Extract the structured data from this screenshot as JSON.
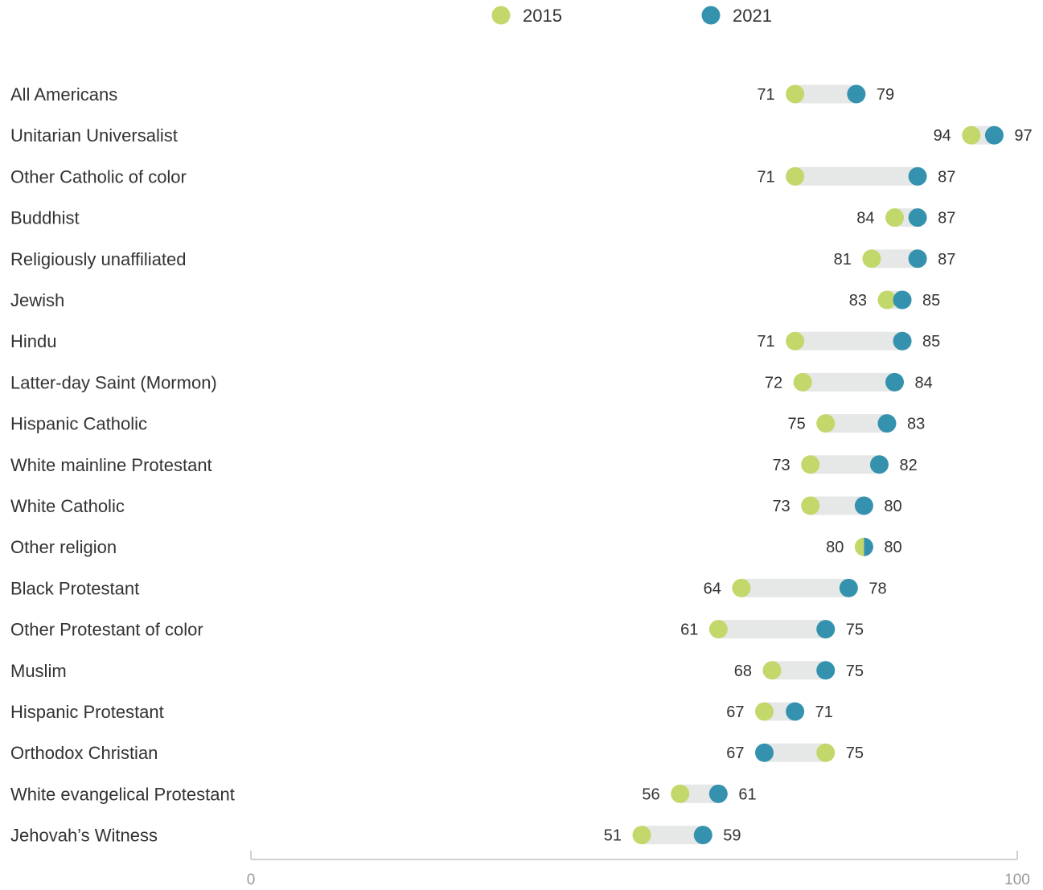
{
  "chart_data": {
    "type": "dumbbell",
    "legend": {
      "placement": "top-center",
      "items": [
        {
          "label": "2015",
          "color": "#c2d86a"
        },
        {
          "label": "2021",
          "color": "#3592ae"
        }
      ]
    },
    "series": [
      {
        "name": "2015",
        "color": "#c2d86a"
      },
      {
        "name": "2021",
        "color": "#3592ae"
      }
    ],
    "categories": [
      "All Americans",
      "Unitarian Universalist",
      "Other Catholic of color",
      "Buddhist",
      "Religiously unaffiliated",
      "Jewish",
      "Hindu",
      "Latter-day Saint (Mormon)",
      "Hispanic Catholic",
      "White mainline Protestant",
      "White Catholic",
      "Other religion",
      "Black Protestant",
      "Other Protestant of color",
      "Muslim",
      "Hispanic Protestant",
      "Orthodox Christian",
      "White evangelical Protestant",
      "Jehovah’s Witness"
    ],
    "rows": [
      {
        "label": "All Americans",
        "v2015": 71,
        "v2021": 79
      },
      {
        "label": "Unitarian Universalist",
        "v2015": 94,
        "v2021": 97
      },
      {
        "label": "Other Catholic of color",
        "v2015": 71,
        "v2021": 87
      },
      {
        "label": "Buddhist",
        "v2015": 84,
        "v2021": 87
      },
      {
        "label": "Religiously unaffiliated",
        "v2015": 81,
        "v2021": 87
      },
      {
        "label": "Jewish",
        "v2015": 83,
        "v2021": 85
      },
      {
        "label": "Hindu",
        "v2015": 71,
        "v2021": 85
      },
      {
        "label": "Latter-day Saint (Mormon)",
        "v2015": 72,
        "v2021": 84
      },
      {
        "label": "Hispanic Catholic",
        "v2015": 75,
        "v2021": 83
      },
      {
        "label": "White mainline Protestant",
        "v2015": 73,
        "v2021": 82
      },
      {
        "label": "White Catholic",
        "v2015": 73,
        "v2021": 80
      },
      {
        "label": "Other religion",
        "v2015": 80,
        "v2021": 80
      },
      {
        "label": "Black Protestant",
        "v2015": 64,
        "v2021": 78
      },
      {
        "label": "Other Protestant of color",
        "v2015": 61,
        "v2021": 75
      },
      {
        "label": "Muslim",
        "v2015": 68,
        "v2021": 75
      },
      {
        "label": "Hispanic Protestant",
        "v2015": 67,
        "v2021": 71
      },
      {
        "label": "Orthodox Christian",
        "v2015": 75,
        "v2021": 67
      },
      {
        "label": "White evangelical Protestant",
        "v2015": 56,
        "v2021": 61
      },
      {
        "label": "Jehovah’s Witness",
        "v2015": 51,
        "v2021": 59
      }
    ],
    "xlim": [
      0,
      100
    ],
    "x_ticks": [
      "0",
      "100"
    ],
    "title": "",
    "xlabel": "",
    "ylabel": "",
    "grid": false,
    "connector_color": "#e6e7e7",
    "axis_color": "#d0d0d0"
  }
}
